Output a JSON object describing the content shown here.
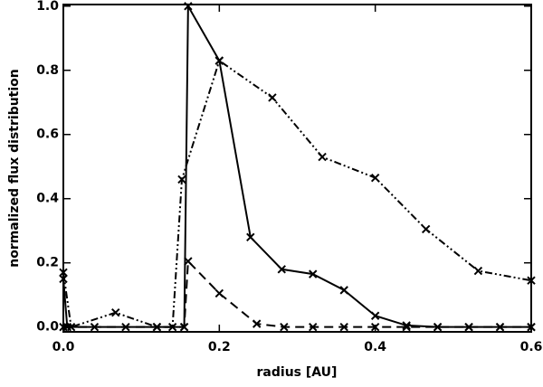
{
  "chart_data": {
    "type": "line",
    "xlabel": "radius [AU]",
    "ylabel": "normalized flux distribution",
    "xlim": [
      0,
      0.6
    ],
    "ylim": [
      -0.015,
      1.005
    ],
    "xticks": [
      {
        "value": 0,
        "label": "0.0"
      },
      0.2,
      0.4,
      0.6
    ],
    "yticks": [
      {
        "value": 0,
        "label": "0.0"
      },
      0.2,
      0.4,
      0.6,
      0.8,
      {
        "value": 1,
        "label": "1.0"
      }
    ],
    "series": [
      {
        "color": "#000000",
        "dash": "solid",
        "x": [
          0,
          0.005,
          0.04,
          0.08,
          0.12,
          0.155,
          0.16,
          0.2,
          0.24,
          0.28,
          0.32,
          0.36,
          0.4,
          0.44,
          0.48,
          0.52,
          0.56,
          0.6
        ],
        "values": [
          0.15,
          0,
          0,
          0,
          0,
          0,
          1.0,
          0.83,
          0.28,
          0.18,
          0.165,
          0.115,
          0.035,
          0.005,
          0,
          0,
          0,
          0
        ]
      },
      {
        "color": "#000000",
        "dash": "dash-dot-dot",
        "x": [
          0,
          0.01,
          0.067,
          0.12,
          0.14,
          0.152,
          0.2,
          0.268,
          0.332,
          0.4,
          0.465,
          0.532,
          0.6
        ],
        "values": [
          0.17,
          0,
          0.045,
          0,
          0,
          0.46,
          0.83,
          0.715,
          0.53,
          0.465,
          0.305,
          0.175,
          0.145
        ]
      },
      {
        "color": "#000000",
        "dash": "dashed",
        "x": [
          0,
          0.12,
          0.155,
          0.16,
          0.2,
          0.248,
          0.283,
          0.32,
          0.36,
          0.4,
          0.44,
          0.48,
          0.52,
          0.56,
          0.6
        ],
        "values": [
          0,
          0,
          0,
          0.205,
          0.105,
          0.01,
          0,
          0,
          0,
          0,
          0,
          0,
          0,
          0,
          0
        ]
      }
    ]
  }
}
